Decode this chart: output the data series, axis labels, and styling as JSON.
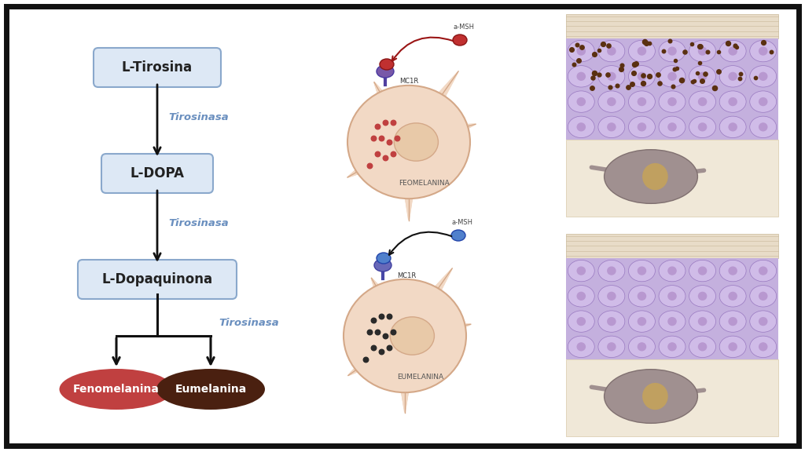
{
  "bg_color": "#ffffff",
  "box_fill": "#dde8f5",
  "box_edge": "#8aa8cc",
  "box_texts": [
    "L-Tirosina",
    "L-DOPA",
    "L-Dopaquinona"
  ],
  "arrow_label_color": "#6a8fbf",
  "arrow_labels": [
    "Tirosinasa",
    "Tirosinasa",
    "Tirosinasa"
  ],
  "feno_color": "#c04040",
  "feno_text": "Fenomelanina",
  "eu_color": "#4a2010",
  "eu_text": "Eumelanina",
  "cell_body_color": "#f2d9c5",
  "cell_nucleus_color": "#e8c9a8",
  "cell_outline_color": "#d4a888",
  "feo_dots_color": "#c04040",
  "eu_dots_color": "#2a2a2a",
  "mc1r_text": "MC1R",
  "aMSH_text": "a-MSH",
  "feo_cell_label": "FEOMELANINA",
  "eu_cell_label": "EUMELANINA",
  "skin_purple_light": "#c8b8e4",
  "skin_purple_dark": "#b8a0d8",
  "skin_cell_fill": "#d0bce8",
  "skin_cell_border": "#9878c0",
  "skin_stratum_fill": "#e8dcc8",
  "skin_stratum_line": "#c8b898",
  "skin_dermis_fill": "#f0e8d8",
  "melanocyte_body": "#a09090",
  "melanocyte_nucleus": "#b89060",
  "border_color": "#111111"
}
